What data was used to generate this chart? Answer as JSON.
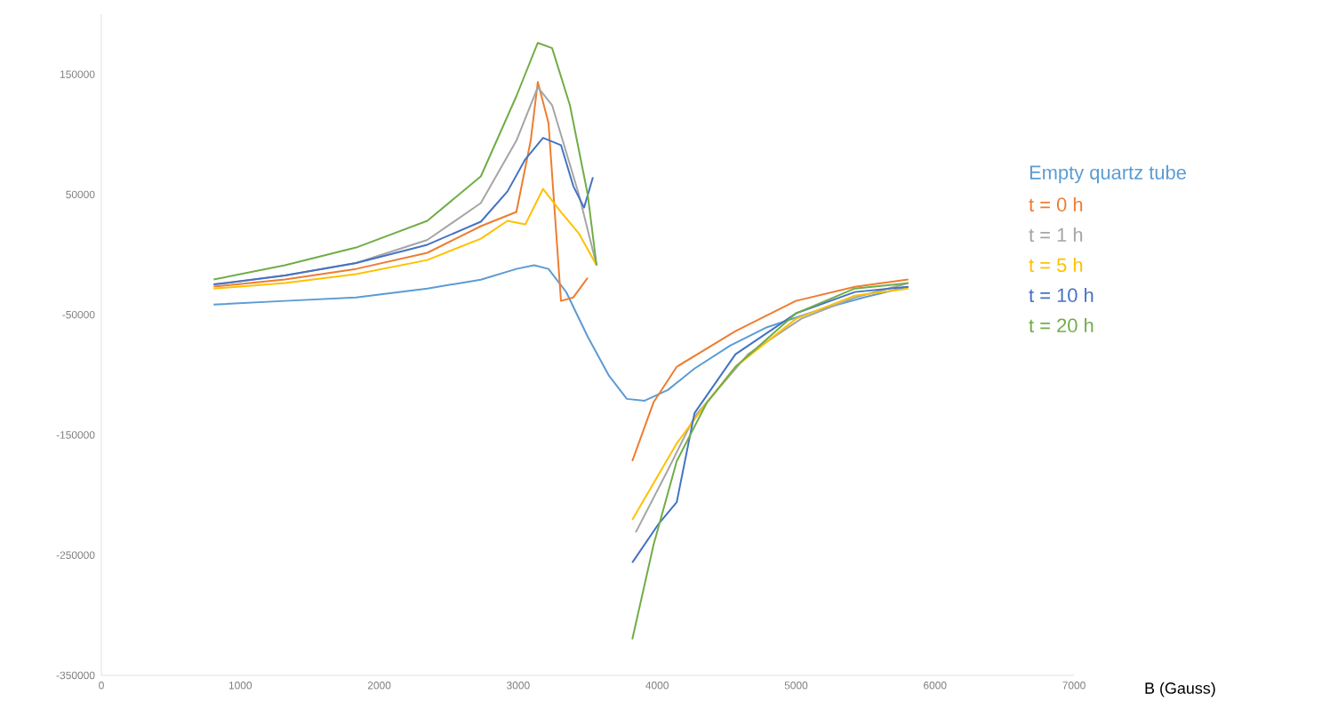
{
  "chart_data": {
    "type": "line",
    "xlabel": "B (Gauss)",
    "xlim": [
      0,
      7000
    ],
    "xticks": [
      0,
      1000,
      2000,
      3000,
      4000,
      5000,
      6000,
      7000
    ],
    "ylim": [
      -350000,
      200000
    ],
    "yticks": [
      -350000,
      -250000,
      -150000,
      -50000,
      50000,
      150000
    ],
    "legend": "right",
    "grid": false,
    "marker": "none",
    "line_style": "solid",
    "series": [
      {
        "name": "Empty quartz tube",
        "color": "#5b9bd5",
        "x": [
          808,
          1321,
          1833,
          2346,
          2731,
          2987,
          3115,
          3218,
          3346,
          3500,
          3654,
          3782,
          3910,
          4077,
          4269,
          4526,
          4782,
          5167,
          5487,
          5808
        ],
        "values": [
          -41500,
          -38500,
          -35600,
          -28200,
          -20800,
          -11900,
          -8900,
          -11900,
          -31200,
          -68200,
          -100800,
          -120000,
          -121500,
          -112600,
          -94800,
          -75600,
          -60800,
          -45900,
          -35600,
          -26700
        ]
      },
      {
        "name": "t = 0 h",
        "color": "#ed7d31",
        "x": [
          808,
          1321,
          1833,
          2346,
          2731,
          2987,
          3090,
          3141,
          3218,
          3308,
          3397,
          3500,
          null,
          3821,
          3974,
          4141,
          4564,
          4998,
          5423,
          5808
        ],
        "values": [
          -26600,
          -20700,
          -11900,
          1500,
          23700,
          35500,
          94800,
          143600,
          109600,
          -38500,
          -35600,
          -19300,
          null,
          -171800,
          -122900,
          -93300,
          -63700,
          -38500,
          -26700,
          -20700
        ]
      },
      {
        "name": "t = 1 h",
        "color": "#a5a5a5",
        "x": [
          808,
          1321,
          1833,
          2346,
          2731,
          2987,
          3141,
          3244,
          3436,
          3564,
          null,
          3846,
          4077,
          4269,
          4654,
          5038,
          5423,
          5808
        ],
        "values": [
          -24800,
          -17400,
          -7000,
          12200,
          42900,
          94800,
          139200,
          124400,
          50300,
          -8900,
          null,
          -231100,
          -179200,
          -134800,
          -82900,
          -53300,
          -35600,
          -23700
        ]
      },
      {
        "name": "t = 5 h",
        "color": "#ffc000",
        "x": [
          808,
          1321,
          1833,
          2346,
          2731,
          2923,
          3051,
          3179,
          3308,
          3436,
          3564,
          null,
          3821,
          4141,
          4359,
          4564,
          5000,
          5423,
          5808
        ],
        "values": [
          -28200,
          -23700,
          -16300,
          -4500,
          13300,
          28100,
          25100,
          54700,
          35500,
          17700,
          -8900,
          null,
          -220700,
          -157000,
          -122900,
          -93300,
          -53300,
          -34100,
          -28200
        ]
      },
      {
        "name": "t = 10 h",
        "color": "#4472c4",
        "x": [
          808,
          1321,
          1833,
          2346,
          2731,
          2923,
          3051,
          3179,
          3308,
          3397,
          3474,
          3538,
          null,
          3821,
          4013,
          4141,
          4269,
          4564,
          5000,
          5423,
          5808
        ],
        "values": [
          -24800,
          -17400,
          -7000,
          8200,
          27400,
          52600,
          79300,
          97100,
          91100,
          56900,
          39100,
          64300,
          null,
          -256200,
          -223600,
          -205900,
          -131800,
          -82900,
          -48800,
          -31100,
          -26700
        ]
      },
      {
        "name": "t = 20 h",
        "color": "#70ad47",
        "x": [
          808,
          1321,
          1833,
          2346,
          2731,
          2987,
          3141,
          3244,
          3372,
          3500,
          3564,
          null,
          3821,
          3974,
          4141,
          4359,
          4564,
          5000,
          5423,
          5808
        ],
        "values": [
          -20700,
          -8900,
          5900,
          28100,
          65100,
          131800,
          176200,
          171800,
          124400,
          50300,
          -8900,
          null,
          -320000,
          -241500,
          -171800,
          -122900,
          -93300,
          -48800,
          -28200,
          -23700
        ]
      }
    ]
  }
}
